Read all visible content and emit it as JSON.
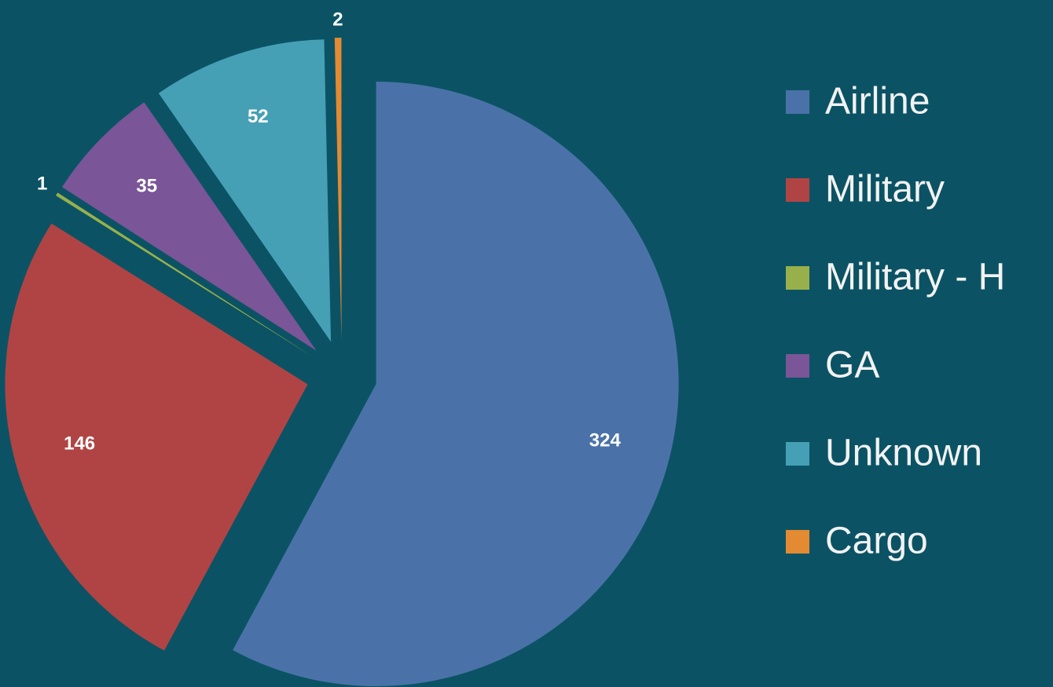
{
  "chart_data": {
    "type": "pie",
    "categories": [
      "Airline",
      "Military",
      "Military - H",
      "GA",
      "Unknown",
      "Cargo"
    ],
    "values": [
      324,
      146,
      1,
      35,
      52,
      2
    ],
    "colors": [
      "#4a72a8",
      "#b04444",
      "#98b04c",
      "#7a5597",
      "#46a0b5",
      "#e38a33"
    ],
    "legend": "right"
  }
}
